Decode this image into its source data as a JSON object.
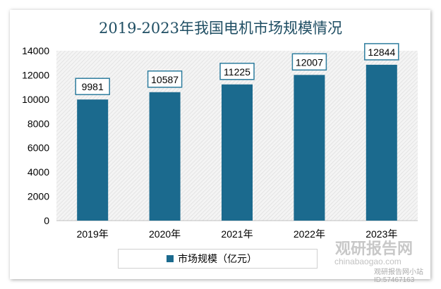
{
  "chart_data": {
    "type": "bar",
    "title": "2019-2023年我国电机市场规模情况",
    "categories": [
      "2019年",
      "2020年",
      "2021年",
      "2022年",
      "2023年"
    ],
    "series": [
      {
        "name": "市场规模（亿元）",
        "values": [
          9981,
          10587,
          11225,
          12007,
          12844
        ],
        "color": "#1b6a8e"
      }
    ],
    "ylim": [
      0,
      14000
    ],
    "yticks": [
      0,
      2000,
      4000,
      6000,
      8000,
      10000,
      12000,
      14000
    ],
    "legend": "bottom",
    "grid": false
  },
  "watermark": {
    "brand": "观研报告网",
    "site": "chinabaogao.com",
    "account": "观研报告网小站 ID:57467163"
  }
}
